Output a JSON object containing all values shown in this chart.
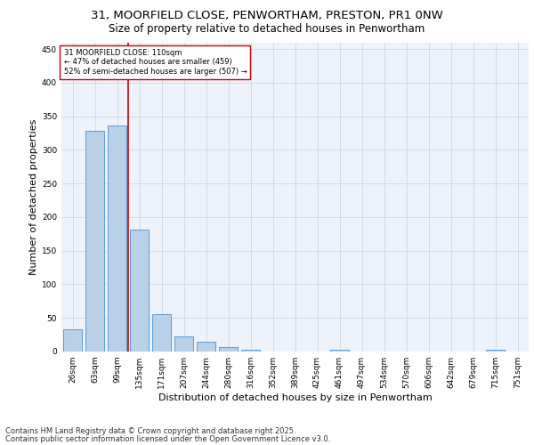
{
  "title_line1": "31, MOORFIELD CLOSE, PENWORTHAM, PRESTON, PR1 0NW",
  "title_line2": "Size of property relative to detached houses in Penwortham",
  "xlabel": "Distribution of detached houses by size in Penwortham",
  "ylabel": "Number of detached properties",
  "footer_line1": "Contains HM Land Registry data © Crown copyright and database right 2025.",
  "footer_line2": "Contains public sector information licensed under the Open Government Licence v3.0.",
  "categories": [
    "26sqm",
    "63sqm",
    "99sqm",
    "135sqm",
    "171sqm",
    "207sqm",
    "244sqm",
    "280sqm",
    "316sqm",
    "352sqm",
    "389sqm",
    "425sqm",
    "461sqm",
    "497sqm",
    "534sqm",
    "570sqm",
    "606sqm",
    "642sqm",
    "679sqm",
    "715sqm",
    "751sqm"
  ],
  "values": [
    33,
    328,
    336,
    181,
    55,
    22,
    14,
    6,
    3,
    0,
    0,
    0,
    3,
    0,
    0,
    0,
    0,
    0,
    0,
    3,
    0
  ],
  "bar_color": "#b8d0e8",
  "bar_edge_color": "#5b9bd5",
  "vline_x": 2.5,
  "vline_color": "#cc0000",
  "annotation_text": "31 MOORFIELD CLOSE: 110sqm\n← 47% of detached houses are smaller (459)\n52% of semi-detached houses are larger (507) →",
  "annotation_box_color": "#ffffff",
  "annotation_box_edge": "#cc0000",
  "ylim": [
    0,
    460
  ],
  "yticks": [
    0,
    50,
    100,
    150,
    200,
    250,
    300,
    350,
    400,
    450
  ],
  "background_color": "#eef2fb",
  "grid_color": "#c8d0e8",
  "title_fontsize": 9.5,
  "subtitle_fontsize": 8.5,
  "axis_label_fontsize": 8,
  "tick_fontsize": 6.5,
  "footer_fontsize": 6
}
